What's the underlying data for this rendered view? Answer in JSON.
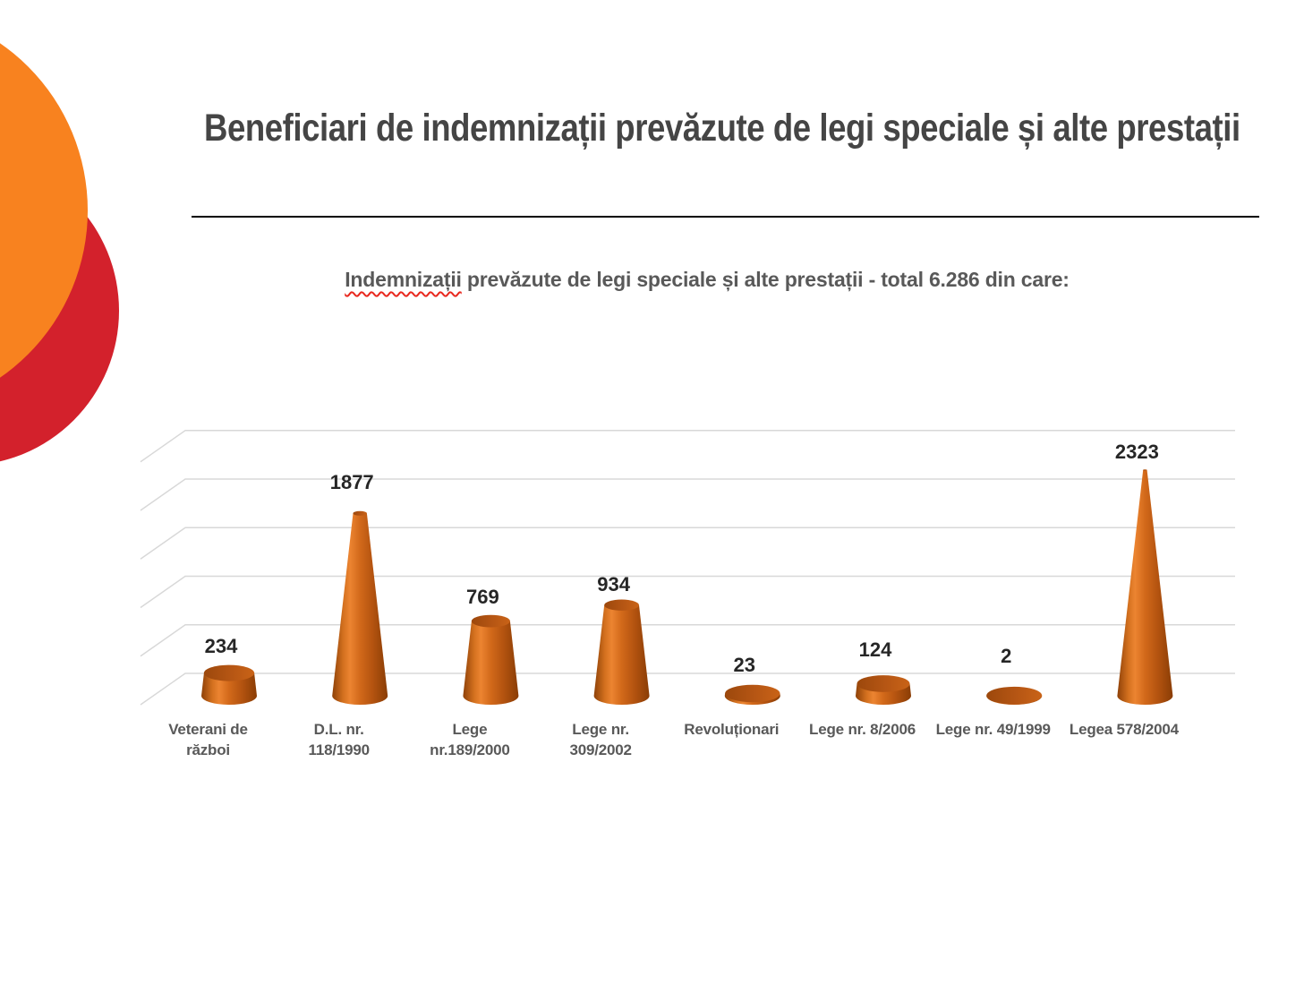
{
  "slide": {
    "title": "Beneficiari de indemnizații prevăzute de legi speciale și alte prestații",
    "subtitle": {
      "highlighted_word": "Indemnizații",
      "rest": " prevăzute de legi speciale și alte prestații - total 6.286 din care:"
    },
    "decoration_colors": {
      "orange": "#F8821F",
      "red": "#D3212C"
    }
  },
  "chart_data": {
    "type": "bar",
    "variant": "3d-cone",
    "title": "Indemnizații prevăzute de legi speciale și alte prestații - total 6.286 din care:",
    "total": 6286,
    "categories": [
      "Veterani de război",
      "D.L. nr. 118/1990",
      "Lege nr.189/2000",
      "Lege nr. 309/2002",
      "Revoluționari",
      "Lege nr. 8/2006",
      "Lege nr. 49/1999",
      "Legea 578/2004"
    ],
    "category_lines": [
      [
        "Veterani de",
        "război"
      ],
      [
        "D.L. nr.",
        "118/1990"
      ],
      [
        "Lege",
        "nr.189/2000"
      ],
      [
        "Lege nr.",
        "309/2002"
      ],
      [
        "Revoluționari"
      ],
      [
        "Lege nr. 8/2006"
      ],
      [
        "Lege nr. 49/1999"
      ],
      [
        "Legea 578/2004"
      ]
    ],
    "values": [
      234,
      1877,
      769,
      934,
      23,
      124,
      2,
      2323
    ],
    "data_labels": true,
    "xlabel": "",
    "ylabel": "",
    "ylim": [
      0,
      2500
    ],
    "gridline_step": 500,
    "grid": true,
    "legend": false,
    "bar_color": "#C55A11",
    "value_label_color": "#262626",
    "category_label_color": "#595959",
    "gridline_color": "#D8D8D8"
  }
}
